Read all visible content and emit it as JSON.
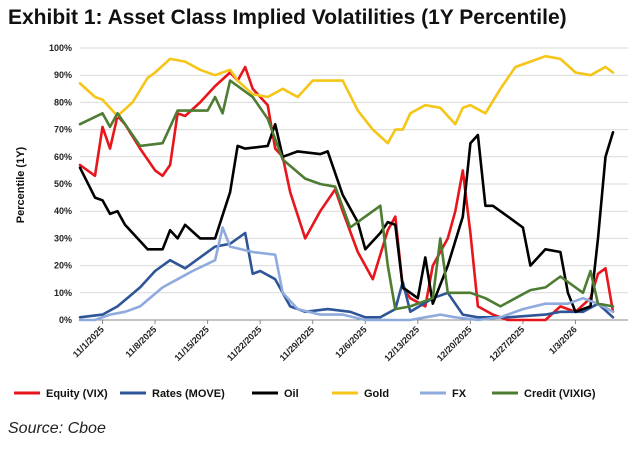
{
  "header": {
    "title": "Exhibit 1: Asset Class Implied Volatilities (1Y Percentile)"
  },
  "footer": {
    "source": "Source: Cboe"
  },
  "chart_data": {
    "type": "line",
    "title": "Exhibit 1: Asset Class Implied Volatilities (1Y Percentile)",
    "xlabel": "",
    "ylabel": "Percentile (1Y)",
    "ylim": [
      0,
      100
    ],
    "yticks": [
      "0%",
      "10%",
      "20%",
      "30%",
      "40%",
      "50%",
      "60%",
      "70%",
      "80%",
      "90%",
      "100%"
    ],
    "xticks": [
      "11/1/2025",
      "11/8/2025",
      "11/15/2025",
      "11/22/2025",
      "11/29/2025",
      "12/6/2025",
      "12/13/2025",
      "12/20/2025",
      "12/27/2025",
      "1/3/2026"
    ],
    "x_range": [
      "2025-10-29",
      "2026-01-10"
    ],
    "grid": true,
    "legend_position": "bottom",
    "series": [
      {
        "name": "Equity (VIX)",
        "color": "#e8151b",
        "points": [
          [
            "2025-10-29",
            57
          ],
          [
            "2025-10-31",
            53
          ],
          [
            "2025-11-01",
            71
          ],
          [
            "2025-11-02",
            63
          ],
          [
            "2025-11-03",
            75
          ],
          [
            "2025-11-04",
            72
          ],
          [
            "2025-11-06",
            63
          ],
          [
            "2025-11-08",
            55
          ],
          [
            "2025-11-09",
            53
          ],
          [
            "2025-11-10",
            57
          ],
          [
            "2025-11-11",
            76
          ],
          [
            "2025-11-12",
            75
          ],
          [
            "2025-11-14",
            80
          ],
          [
            "2025-11-16",
            86
          ],
          [
            "2025-11-18",
            91
          ],
          [
            "2025-11-19",
            88
          ],
          [
            "2025-11-20",
            93
          ],
          [
            "2025-11-21",
            85
          ],
          [
            "2025-11-23",
            79
          ],
          [
            "2025-11-24",
            63
          ],
          [
            "2025-11-25",
            60
          ],
          [
            "2025-11-26",
            47
          ],
          [
            "2025-11-28",
            30
          ],
          [
            "2025-11-30",
            40
          ],
          [
            "2025-12-02",
            48
          ],
          [
            "2025-12-03",
            40
          ],
          [
            "2025-12-05",
            25
          ],
          [
            "2025-12-07",
            15
          ],
          [
            "2025-12-09",
            33
          ],
          [
            "2025-12-10",
            38
          ],
          [
            "2025-12-11",
            12
          ],
          [
            "2025-12-12",
            8
          ],
          [
            "2025-12-14",
            5
          ],
          [
            "2025-12-15",
            20
          ],
          [
            "2025-12-17",
            30
          ],
          [
            "2025-12-18",
            40
          ],
          [
            "2025-12-19",
            55
          ],
          [
            "2025-12-20",
            32
          ],
          [
            "2025-12-21",
            5
          ],
          [
            "2025-12-23",
            2
          ],
          [
            "2025-12-25",
            0
          ],
          [
            "2025-12-30",
            0
          ],
          [
            "2026-01-01",
            5
          ],
          [
            "2026-01-03",
            3
          ],
          [
            "2026-01-05",
            8
          ],
          [
            "2026-01-06",
            17
          ],
          [
            "2026-01-07",
            19
          ],
          [
            "2026-01-08",
            3
          ]
        ]
      },
      {
        "name": "Rates (MOVE)",
        "color": "#2e5597",
        "points": [
          [
            "2025-10-29",
            1
          ],
          [
            "2025-11-01",
            2
          ],
          [
            "2025-11-03",
            5
          ],
          [
            "2025-11-06",
            12
          ],
          [
            "2025-11-08",
            18
          ],
          [
            "2025-11-10",
            22
          ],
          [
            "2025-11-12",
            19
          ],
          [
            "2025-11-14",
            23
          ],
          [
            "2025-11-16",
            27
          ],
          [
            "2025-11-18",
            28
          ],
          [
            "2025-11-20",
            32
          ],
          [
            "2025-11-21",
            17
          ],
          [
            "2025-11-22",
            18
          ],
          [
            "2025-11-24",
            15
          ],
          [
            "2025-11-26",
            5
          ],
          [
            "2025-11-28",
            3
          ],
          [
            "2025-12-01",
            4
          ],
          [
            "2025-12-04",
            3
          ],
          [
            "2025-12-06",
            1
          ],
          [
            "2025-12-08",
            1
          ],
          [
            "2025-12-10",
            4
          ],
          [
            "2025-12-11",
            14
          ],
          [
            "2025-12-12",
            3
          ],
          [
            "2025-12-15",
            8
          ],
          [
            "2025-12-17",
            10
          ],
          [
            "2025-12-19",
            2
          ],
          [
            "2025-12-21",
            1
          ],
          [
            "2025-12-25",
            1
          ],
          [
            "2025-12-30",
            2
          ],
          [
            "2026-01-01",
            3
          ],
          [
            "2026-01-04",
            3
          ],
          [
            "2026-01-06",
            6
          ],
          [
            "2026-01-08",
            1
          ]
        ]
      },
      {
        "name": "Oil",
        "color": "#000000",
        "points": [
          [
            "2025-10-29",
            56
          ],
          [
            "2025-10-31",
            45
          ],
          [
            "2025-11-01",
            44
          ],
          [
            "2025-11-02",
            39
          ],
          [
            "2025-11-03",
            40
          ],
          [
            "2025-11-04",
            35
          ],
          [
            "2025-11-06",
            29
          ],
          [
            "2025-11-07",
            26
          ],
          [
            "2025-11-09",
            26
          ],
          [
            "2025-11-10",
            33
          ],
          [
            "2025-11-11",
            30
          ],
          [
            "2025-11-12",
            35
          ],
          [
            "2025-11-14",
            30
          ],
          [
            "2025-11-16",
            30
          ],
          [
            "2025-11-18",
            47
          ],
          [
            "2025-11-19",
            64
          ],
          [
            "2025-11-20",
            63
          ],
          [
            "2025-11-23",
            64
          ],
          [
            "2025-11-24",
            72
          ],
          [
            "2025-11-25",
            60
          ],
          [
            "2025-11-27",
            62
          ],
          [
            "2025-11-30",
            61
          ],
          [
            "2025-12-01",
            62
          ],
          [
            "2025-12-03",
            46
          ],
          [
            "2025-12-05",
            36
          ],
          [
            "2025-12-06",
            26
          ],
          [
            "2025-12-08",
            32
          ],
          [
            "2025-12-09",
            36
          ],
          [
            "2025-12-10",
            35
          ],
          [
            "2025-12-11",
            12
          ],
          [
            "2025-12-13",
            8
          ],
          [
            "2025-12-14",
            23
          ],
          [
            "2025-12-15",
            6
          ],
          [
            "2025-12-17",
            20
          ],
          [
            "2025-12-19",
            38
          ],
          [
            "2025-12-20",
            65
          ],
          [
            "2025-12-21",
            68
          ],
          [
            "2025-12-22",
            42
          ],
          [
            "2025-12-23",
            42
          ],
          [
            "2025-12-25",
            38
          ],
          [
            "2025-12-27",
            34
          ],
          [
            "2025-12-28",
            20
          ],
          [
            "2025-12-30",
            26
          ],
          [
            "2026-01-01",
            25
          ],
          [
            "2026-01-02",
            10
          ],
          [
            "2026-01-03",
            3
          ],
          [
            "2026-01-05",
            5
          ],
          [
            "2026-01-06",
            30
          ],
          [
            "2026-01-07",
            60
          ],
          [
            "2026-01-08",
            69
          ]
        ]
      },
      {
        "name": "Gold",
        "color": "#f5c518",
        "points": [
          [
            "2025-10-29",
            87
          ],
          [
            "2025-10-31",
            82
          ],
          [
            "2025-11-01",
            81
          ],
          [
            "2025-11-03",
            75
          ],
          [
            "2025-11-05",
            80
          ],
          [
            "2025-11-07",
            89
          ],
          [
            "2025-11-08",
            91
          ],
          [
            "2025-11-10",
            96
          ],
          [
            "2025-11-12",
            95
          ],
          [
            "2025-11-14",
            92
          ],
          [
            "2025-11-16",
            90
          ],
          [
            "2025-11-18",
            92
          ],
          [
            "2025-11-19",
            88
          ],
          [
            "2025-11-21",
            83
          ],
          [
            "2025-11-23",
            82
          ],
          [
            "2025-11-25",
            85
          ],
          [
            "2025-11-27",
            82
          ],
          [
            "2025-11-29",
            88
          ],
          [
            "2025-12-01",
            88
          ],
          [
            "2025-12-03",
            88
          ],
          [
            "2025-12-05",
            77
          ],
          [
            "2025-12-07",
            70
          ],
          [
            "2025-12-09",
            65
          ],
          [
            "2025-12-10",
            70
          ],
          [
            "2025-12-11",
            70
          ],
          [
            "2025-12-12",
            76
          ],
          [
            "2025-12-14",
            79
          ],
          [
            "2025-12-16",
            78
          ],
          [
            "2025-12-17",
            75
          ],
          [
            "2025-12-18",
            72
          ],
          [
            "2025-12-19",
            78
          ],
          [
            "2025-12-20",
            79
          ],
          [
            "2025-12-22",
            76
          ],
          [
            "2025-12-24",
            85
          ],
          [
            "2025-12-26",
            93
          ],
          [
            "2025-12-28",
            95
          ],
          [
            "2025-12-30",
            97
          ],
          [
            "2026-01-01",
            96
          ],
          [
            "2026-01-03",
            91
          ],
          [
            "2026-01-05",
            90
          ],
          [
            "2026-01-07",
            93
          ],
          [
            "2026-01-08",
            91
          ]
        ]
      },
      {
        "name": "FX",
        "color": "#8faadc",
        "points": [
          [
            "2025-10-29",
            0
          ],
          [
            "2025-10-31",
            0
          ],
          [
            "2025-11-02",
            2
          ],
          [
            "2025-11-04",
            3
          ],
          [
            "2025-11-06",
            5
          ],
          [
            "2025-11-09",
            12
          ],
          [
            "2025-11-11",
            15
          ],
          [
            "2025-11-13",
            18
          ],
          [
            "2025-11-16",
            22
          ],
          [
            "2025-11-17",
            34
          ],
          [
            "2025-11-18",
            27
          ],
          [
            "2025-11-21",
            25
          ],
          [
            "2025-11-24",
            24
          ],
          [
            "2025-11-25",
            10
          ],
          [
            "2025-11-27",
            4
          ],
          [
            "2025-11-30",
            2
          ],
          [
            "2025-12-03",
            2
          ],
          [
            "2025-12-06",
            0
          ],
          [
            "2025-12-09",
            0
          ],
          [
            "2025-12-12",
            0
          ],
          [
            "2025-12-14",
            1
          ],
          [
            "2025-12-16",
            2
          ],
          [
            "2025-12-18",
            1
          ],
          [
            "2025-12-21",
            0
          ],
          [
            "2025-12-24",
            1
          ],
          [
            "2025-12-27",
            4
          ],
          [
            "2025-12-30",
            6
          ],
          [
            "2026-01-02",
            6
          ],
          [
            "2026-01-04",
            8
          ],
          [
            "2026-01-06",
            6
          ],
          [
            "2026-01-08",
            3
          ]
        ]
      },
      {
        "name": "Credit (VIXIG)",
        "color": "#4d7c32",
        "points": [
          [
            "2025-10-29",
            72
          ],
          [
            "2025-11-01",
            76
          ],
          [
            "2025-11-02",
            71
          ],
          [
            "2025-11-03",
            76
          ],
          [
            "2025-11-06",
            64
          ],
          [
            "2025-11-09",
            65
          ],
          [
            "2025-11-11",
            77
          ],
          [
            "2025-11-15",
            77
          ],
          [
            "2025-11-16",
            82
          ],
          [
            "2025-11-17",
            76
          ],
          [
            "2025-11-18",
            88
          ],
          [
            "2025-11-21",
            82
          ],
          [
            "2025-11-23",
            74
          ],
          [
            "2025-11-25",
            59
          ],
          [
            "2025-11-28",
            52
          ],
          [
            "2025-11-30",
            50
          ],
          [
            "2025-12-02",
            49
          ],
          [
            "2025-12-04",
            34
          ],
          [
            "2025-12-06",
            38
          ],
          [
            "2025-12-08",
            42
          ],
          [
            "2025-12-09",
            20
          ],
          [
            "2025-12-10",
            4
          ],
          [
            "2025-12-12",
            5
          ],
          [
            "2025-12-15",
            8
          ],
          [
            "2025-12-16",
            30
          ],
          [
            "2025-12-17",
            10
          ],
          [
            "2025-12-20",
            10
          ],
          [
            "2025-12-22",
            8
          ],
          [
            "2025-12-24",
            5
          ],
          [
            "2025-12-26",
            8
          ],
          [
            "2025-12-28",
            11
          ],
          [
            "2025-12-30",
            12
          ],
          [
            "2026-01-01",
            16
          ],
          [
            "2026-01-04",
            10
          ],
          [
            "2026-01-05",
            18
          ],
          [
            "2026-01-06",
            6
          ],
          [
            "2026-01-08",
            5
          ]
        ]
      }
    ]
  }
}
